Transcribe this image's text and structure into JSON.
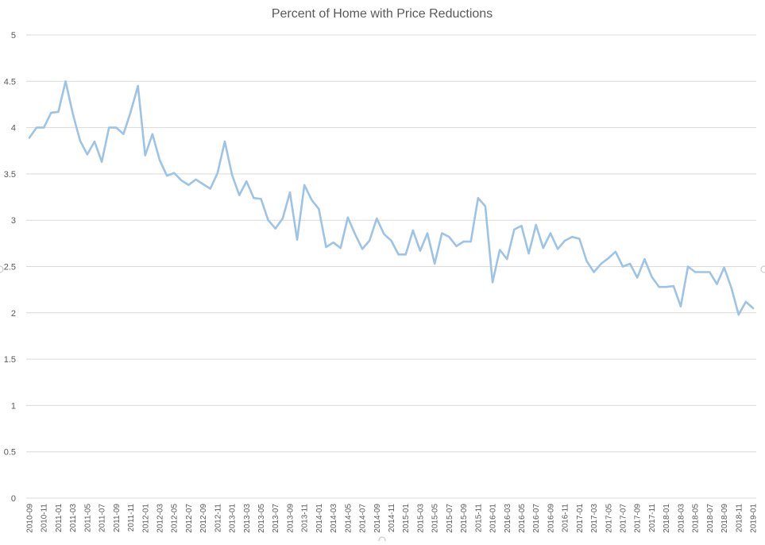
{
  "chart_data": {
    "type": "line",
    "title": "Percent of Home with Price Reductions",
    "xlabel": "",
    "ylabel": "",
    "ylim": [
      0,
      5
    ],
    "yticks": [
      "0",
      "0.5",
      "1",
      "1.5",
      "2",
      "2.5",
      "3",
      "3.5",
      "4",
      "4.5",
      "5"
    ],
    "grid": true,
    "legend": "none",
    "series_color": "#9dc3e6",
    "x": [
      "2010-09",
      "2010-10",
      "2010-11",
      "2010-12",
      "2011-01",
      "2011-02",
      "2011-03",
      "2011-04",
      "2011-05",
      "2011-06",
      "2011-07",
      "2011-08",
      "2011-09",
      "2011-10",
      "2011-11",
      "2011-12",
      "2012-01",
      "2012-02",
      "2012-03",
      "2012-04",
      "2012-05",
      "2012-06",
      "2012-07",
      "2012-08",
      "2012-09",
      "2012-10",
      "2012-11",
      "2012-12",
      "2013-01",
      "2013-02",
      "2013-03",
      "2013-04",
      "2013-05",
      "2013-06",
      "2013-07",
      "2013-08",
      "2013-09",
      "2013-10",
      "2013-11",
      "2013-12",
      "2014-01",
      "2014-02",
      "2014-03",
      "2014-04",
      "2014-05",
      "2014-06",
      "2014-07",
      "2014-08",
      "2014-09",
      "2014-10",
      "2014-11",
      "2014-12",
      "2015-01",
      "2015-02",
      "2015-03",
      "2015-04",
      "2015-05",
      "2015-06",
      "2015-07",
      "2015-08",
      "2015-09",
      "2015-10",
      "2015-11",
      "2015-12",
      "2016-01",
      "2016-02",
      "2016-03",
      "2016-04",
      "2016-05",
      "2016-06",
      "2016-07",
      "2016-08",
      "2016-09",
      "2016-10",
      "2016-11",
      "2016-12",
      "2017-01",
      "2017-02",
      "2017-03",
      "2017-04",
      "2017-05",
      "2017-06",
      "2017-07",
      "2017-08",
      "2017-09",
      "2017-10",
      "2017-11",
      "2017-12",
      "2018-01",
      "2018-02",
      "2018-03",
      "2018-04",
      "2018-05",
      "2018-06",
      "2018-07",
      "2018-08",
      "2018-09",
      "2018-10",
      "2018-11",
      "2018-12",
      "2019-01"
    ],
    "xtick_labels": [
      "2010-09",
      "2010-11",
      "2011-01",
      "2011-03",
      "2011-05",
      "2011-07",
      "2011-09",
      "2011-11",
      "2012-01",
      "2012-03",
      "2012-05",
      "2012-07",
      "2012-09",
      "2012-11",
      "2013-01",
      "2013-03",
      "2013-05",
      "2013-07",
      "2013-09",
      "2013-11",
      "2014-01",
      "2014-03",
      "2014-05",
      "2014-07",
      "2014-09",
      "2014-11",
      "2015-01",
      "2015-03",
      "2015-05",
      "2015-07",
      "2015-09",
      "2015-11",
      "2016-01",
      "2016-03",
      "2016-05",
      "2016-07",
      "2016-09",
      "2016-11",
      "2017-01",
      "2017-03",
      "2017-05",
      "2017-07",
      "2017-09",
      "2017-11",
      "2018-01",
      "2018-03",
      "2018-05",
      "2018-07",
      "2018-09",
      "2018-11",
      "2019-01"
    ],
    "series": [
      {
        "values": [
          3.89,
          4.0,
          4.0,
          4.16,
          4.17,
          4.5,
          4.15,
          3.86,
          3.71,
          3.85,
          3.63,
          4.0,
          4.0,
          3.93,
          4.17,
          4.45,
          3.7,
          3.93,
          3.65,
          3.48,
          3.51,
          3.43,
          3.38,
          3.44,
          3.39,
          3.34,
          3.51,
          3.85,
          3.49,
          3.27,
          3.42,
          3.24,
          3.23,
          3.0,
          2.91,
          3.02,
          3.3,
          2.79,
          3.38,
          3.22,
          3.12,
          2.71,
          2.76,
          2.7,
          3.03,
          2.85,
          2.69,
          2.78,
          3.02,
          2.85,
          2.78,
          2.63,
          2.63,
          2.89,
          2.67,
          2.86,
          2.53,
          2.86,
          2.82,
          2.72,
          2.77,
          2.77,
          3.24,
          3.15,
          2.33,
          2.68,
          2.58,
          2.9,
          2.94,
          2.64,
          2.95,
          2.7,
          2.86,
          2.69,
          2.78,
          2.82,
          2.8,
          2.56,
          2.44,
          2.53,
          2.59,
          2.66,
          2.5,
          2.53,
          2.38,
          2.58,
          2.39,
          2.28,
          2.28,
          2.29,
          2.07,
          2.5,
          2.44,
          2.44,
          2.44,
          2.31,
          2.49,
          2.27,
          1.98,
          2.12,
          2.05
        ]
      }
    ]
  }
}
